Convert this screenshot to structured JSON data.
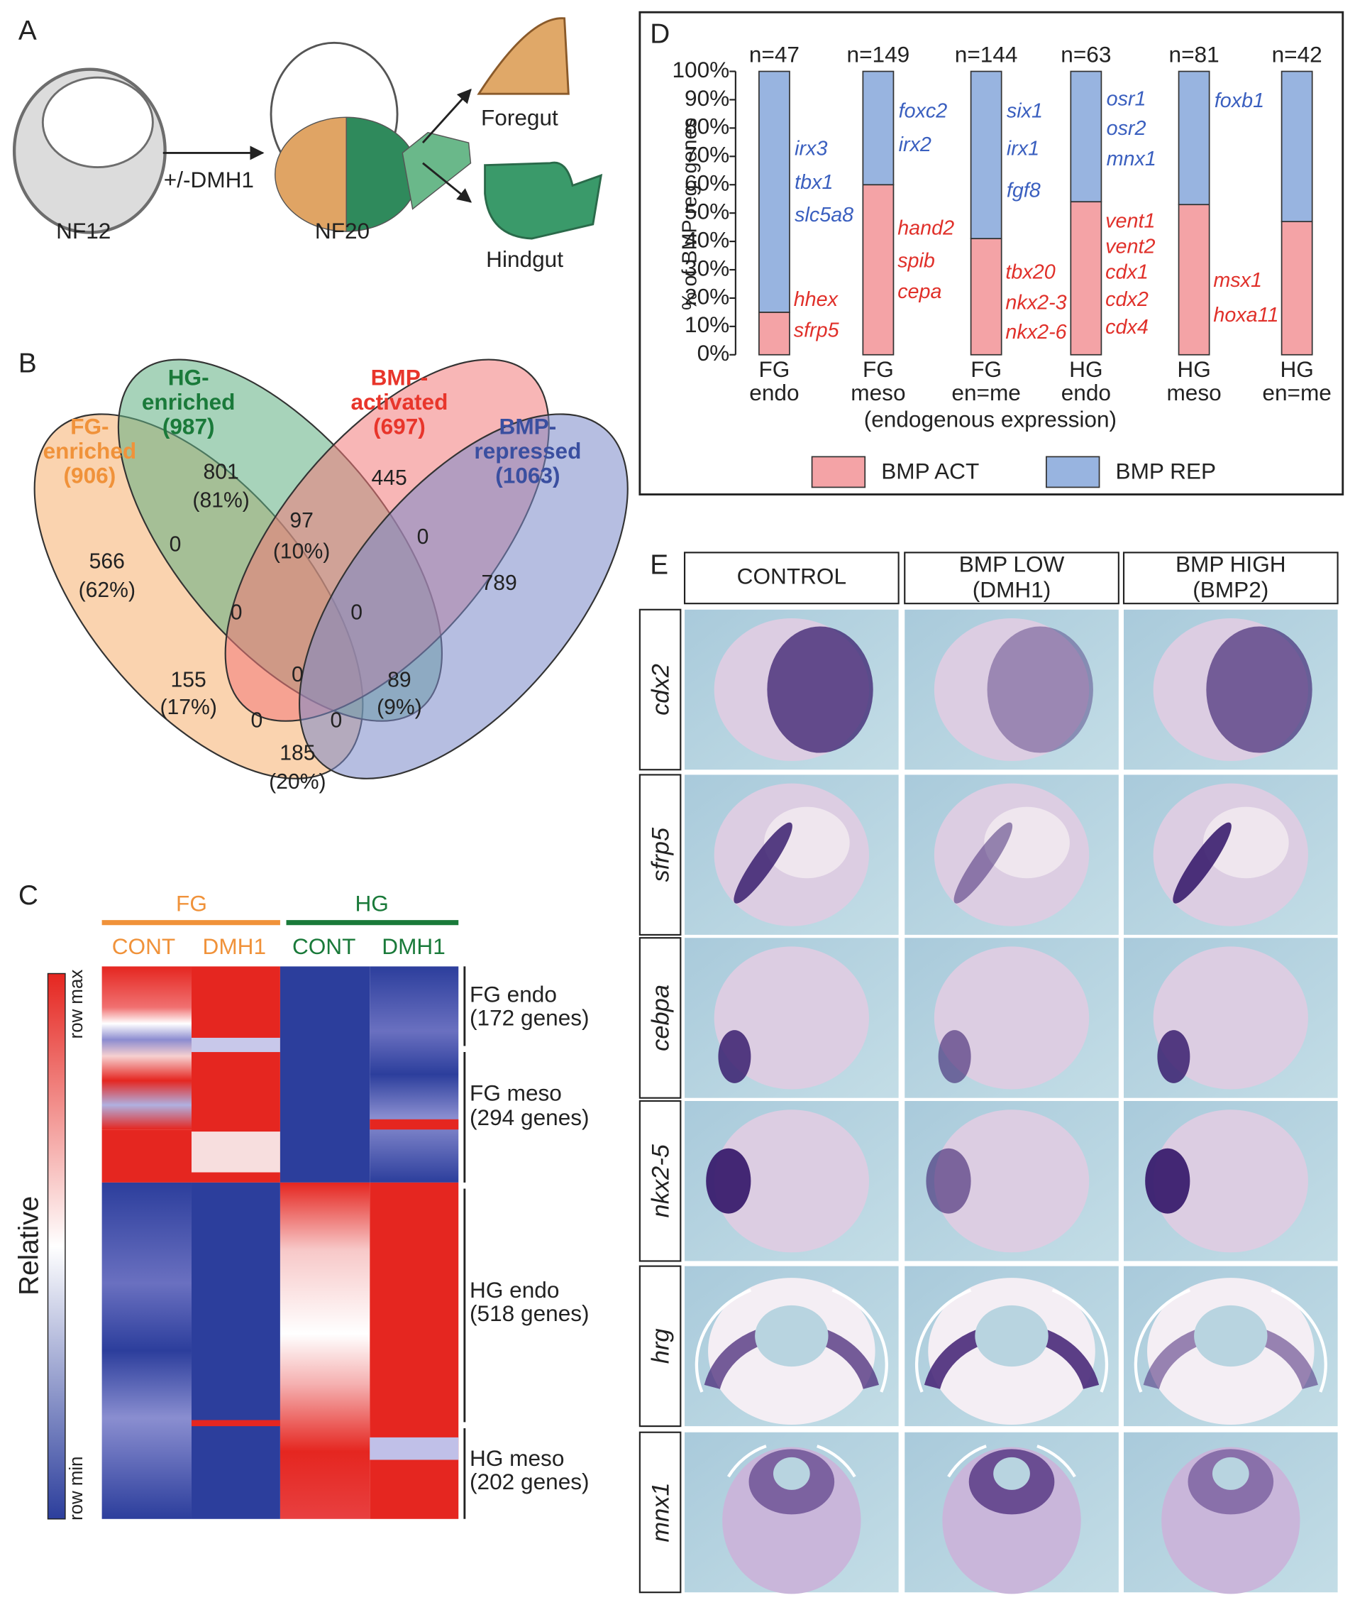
{
  "panel_labels": [
    "A",
    "B",
    "C",
    "D",
    "E"
  ],
  "panel_a": {
    "stages": [
      "NF12",
      "NF20"
    ],
    "treatment": "+/-DMH1",
    "outputs": [
      "Foregut",
      "Hindgut"
    ]
  },
  "panel_b": {
    "sets": [
      {
        "name_lines": [
          "FG-",
          "enriched"
        ],
        "count": "(906)"
      },
      {
        "name_lines": [
          "HG-",
          "enriched"
        ],
        "count": "(987)"
      },
      {
        "name_lines": [
          "BMP-",
          "activated"
        ],
        "count": "(697)"
      },
      {
        "name_lines": [
          "BMP-",
          "repressed"
        ],
        "count": "(1063)"
      }
    ],
    "regions": [
      {
        "count": 801,
        "percent": "(81%)"
      },
      {
        "count": 445
      },
      {
        "count": 566,
        "percent": "(62%)"
      },
      {
        "count": 0
      },
      {
        "count": 97,
        "percent": "(10%)"
      },
      {
        "count": 0
      },
      {
        "count": 789
      },
      {
        "count": 0
      },
      {
        "count": 0
      },
      {
        "count": 155,
        "percent": "(17%)"
      },
      {
        "count": 0
      },
      {
        "count": 89,
        "percent": "(9%)"
      },
      {
        "count": 0
      },
      {
        "count": 0
      },
      {
        "count": 185,
        "percent": "(20%)"
      }
    ]
  },
  "panel_c": {
    "groups": [
      "FG",
      "HG"
    ],
    "conditions": [
      "CONT",
      "DMH1",
      "CONT",
      "DMH1"
    ],
    "clusters": [
      {
        "name": "FG endo",
        "genes": "(172 genes)"
      },
      {
        "name": "FG meso",
        "genes": "(294 genes)"
      },
      {
        "name": "HG endo",
        "genes": "(518 genes)"
      },
      {
        "name": "HG meso",
        "genes": "(202 genes)"
      }
    ],
    "scale_label": "Relative",
    "scale_max": "row max",
    "scale_min": "row min"
  },
  "chart_data": {
    "type": "bar",
    "stacked": true,
    "categories": [
      [
        "FG",
        "endo"
      ],
      [
        "FG",
        "meso"
      ],
      [
        "FG",
        "en=me"
      ],
      [
        "HG",
        "endo"
      ],
      [
        "HG",
        "meso"
      ],
      [
        "HG",
        "en=me"
      ]
    ],
    "series": [
      {
        "name": "BMP ACT",
        "color": "#f4a3a6",
        "values": [
          15,
          60,
          41,
          54,
          53,
          47
        ]
      },
      {
        "name": "BMP REP",
        "color": "#98b4e0",
        "values": [
          85,
          40,
          59,
          46,
          47,
          53
        ]
      }
    ],
    "annotations": [
      "n=47",
      "n=149",
      "n=144",
      "n=63",
      "n=81",
      "n=42"
    ],
    "genes": [
      {
        "repressed": [
          "irx3",
          "tbx1",
          "slc5a8"
        ],
        "activated": [
          "hhex",
          "sfrp5"
        ]
      },
      {
        "repressed": [
          "foxc2",
          "irx2"
        ],
        "activated": [
          "hand2",
          "spib",
          "cepa"
        ]
      },
      {
        "repressed": [
          "six1",
          "irx1",
          "fgf8"
        ],
        "activated": [
          "tbx20",
          "nkx2-3",
          "nkx2-6"
        ]
      },
      {
        "repressed": [
          "osr1",
          "osr2",
          "mnx1"
        ],
        "activated": [
          "vent1",
          "vent2",
          "cdx1",
          "cdx2",
          "cdx4"
        ]
      },
      {
        "repressed": [
          "foxb1"
        ],
        "activated": [
          "msx1",
          "hoxa11"
        ]
      },
      {
        "repressed": [],
        "activated": []
      }
    ],
    "ylabel": "% of BMP reg. genes",
    "xlabel": "(endogenous expression)",
    "ylim": [
      0,
      100
    ],
    "yticks": [
      {
        "value": 0,
        "label": "0%"
      },
      {
        "value": 10,
        "label": "10%"
      },
      {
        "value": 20,
        "label": "20%"
      },
      {
        "value": 30,
        "label": "30%"
      },
      {
        "value": 40,
        "label": "40%"
      },
      {
        "value": 50,
        "label": "50%"
      },
      {
        "value": 60,
        "label": "60%"
      },
      {
        "value": 70,
        "label": "70%"
      },
      {
        "value": 80,
        "label": "80%"
      },
      {
        "value": 90,
        "label": "90%"
      },
      {
        "value": 100,
        "label": "100%"
      }
    ],
    "grid": false,
    "legend": "bottom",
    "gene_colors": {
      "repressed": "#3a5fbf",
      "activated": "#e0302a"
    }
  },
  "panel_e": {
    "columns": [
      [
        "CONTROL"
      ],
      [
        "BMP LOW",
        "(DMH1)"
      ],
      [
        "BMP HIGH",
        "(BMP2)"
      ]
    ],
    "rows": [
      "cdx2",
      "sfrp5",
      "cebpa",
      "nkx2-5",
      "hrg",
      "mnx1"
    ]
  }
}
